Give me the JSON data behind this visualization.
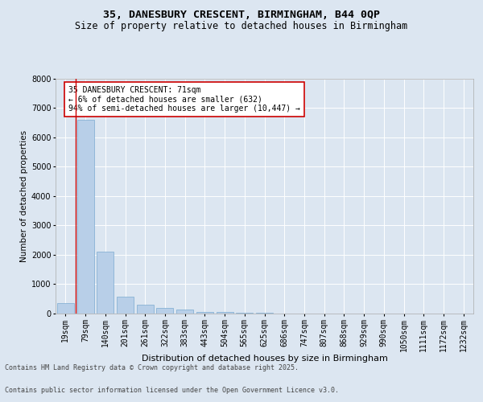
{
  "title1": "35, DANESBURY CRESCENT, BIRMINGHAM, B44 0QP",
  "title2": "Size of property relative to detached houses in Birmingham",
  "xlabel": "Distribution of detached houses by size in Birmingham",
  "ylabel": "Number of detached properties",
  "categories": [
    "19sqm",
    "79sqm",
    "140sqm",
    "201sqm",
    "261sqm",
    "322sqm",
    "383sqm",
    "443sqm",
    "504sqm",
    "565sqm",
    "625sqm",
    "686sqm",
    "747sqm",
    "807sqm",
    "868sqm",
    "929sqm",
    "990sqm",
    "1050sqm",
    "1111sqm",
    "1172sqm",
    "1232sqm"
  ],
  "values": [
    350,
    6600,
    2100,
    580,
    310,
    200,
    130,
    60,
    50,
    30,
    20,
    10,
    5,
    0,
    0,
    0,
    0,
    0,
    0,
    0,
    0
  ],
  "bar_color": "#b8cfe8",
  "bar_edge_color": "#7baad0",
  "vline_color": "#cc0000",
  "annotation_text": "35 DANESBURY CRESCENT: 71sqm\n← 6% of detached houses are smaller (632)\n94% of semi-detached houses are larger (10,447) →",
  "annotation_box_facecolor": "#ffffff",
  "annotation_box_edgecolor": "#cc0000",
  "bg_color": "#dce6f1",
  "plot_bg_color": "#dce6f1",
  "grid_color": "#ffffff",
  "ylim": [
    0,
    8000
  ],
  "yticks": [
    0,
    1000,
    2000,
    3000,
    4000,
    5000,
    6000,
    7000,
    8000
  ],
  "footer1": "Contains HM Land Registry data © Crown copyright and database right 2025.",
  "footer2": "Contains public sector information licensed under the Open Government Licence v3.0.",
  "title1_fontsize": 9.5,
  "title2_fontsize": 8.5,
  "xlabel_fontsize": 8,
  "ylabel_fontsize": 7.5,
  "tick_fontsize": 7,
  "annotation_fontsize": 7,
  "footer_fontsize": 6
}
